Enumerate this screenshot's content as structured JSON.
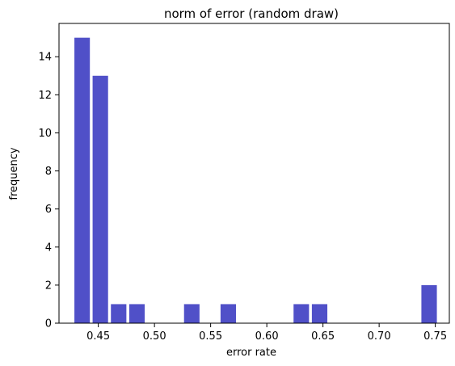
{
  "chart_data": {
    "type": "bar",
    "title": "norm of error (random draw)",
    "xlabel": "error rate",
    "ylabel": "frequency",
    "xlim": [
      0.415,
      0.7625
    ],
    "ylim": [
      0,
      15.75
    ],
    "xticks": [
      0.45,
      0.5,
      0.55,
      0.6,
      0.65,
      0.7,
      0.75
    ],
    "xtick_labels": [
      "0.45",
      "0.50",
      "0.55",
      "0.60",
      "0.65",
      "0.70",
      "0.75"
    ],
    "yticks": [
      0,
      2,
      4,
      6,
      8,
      10,
      12,
      14
    ],
    "ytick_labels": [
      "0",
      "2",
      "4",
      "6",
      "8",
      "10",
      "12",
      "14"
    ],
    "bin_width": 0.0162,
    "bars": [
      {
        "x": 0.4356,
        "value": 15
      },
      {
        "x": 0.4518,
        "value": 13
      },
      {
        "x": 0.4681,
        "value": 1
      },
      {
        "x": 0.4844,
        "value": 1
      },
      {
        "x": 0.5332,
        "value": 1
      },
      {
        "x": 0.5657,
        "value": 1
      },
      {
        "x": 0.6307,
        "value": 1
      },
      {
        "x": 0.647,
        "value": 1
      },
      {
        "x": 0.7445,
        "value": 2
      }
    ],
    "bar_color": "#5050c8",
    "grid": false
  }
}
